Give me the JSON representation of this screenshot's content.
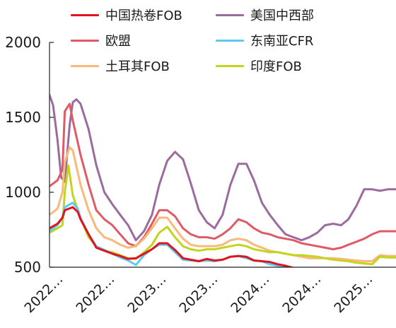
{
  "chart_data": {
    "type": "line",
    "title": "",
    "xlabel": "",
    "ylabel": "",
    "ylim": [
      500,
      2000
    ],
    "yticks": [
      500,
      1000,
      1500,
      2000
    ],
    "xtick_labels": [
      "2022…",
      "2022…",
      "2023…",
      "2023…",
      "2024…",
      "2024…",
      "2025…"
    ],
    "x_range": [
      "2022-01",
      "2025-09"
    ],
    "legend_position": "top",
    "series": [
      {
        "name": "中国热卷FOB",
        "color": "#e0141e",
        "points": [
          [
            "2022-01",
            760
          ],
          [
            "2022-02",
            790
          ],
          [
            "2022-02-20",
            830
          ],
          [
            "2022-03",
            880
          ],
          [
            "2022-04",
            900
          ],
          [
            "2022-04-20",
            870
          ],
          [
            "2022-05",
            820
          ],
          [
            "2022-06",
            720
          ],
          [
            "2022-07",
            630
          ],
          [
            "2022-08",
            610
          ],
          [
            "2022-09",
            590
          ],
          [
            "2022-10",
            575
          ],
          [
            "2022-11",
            555
          ],
          [
            "2022-12",
            560
          ],
          [
            "2023-01",
            590
          ],
          [
            "2023-02",
            620
          ],
          [
            "2023-03",
            660
          ],
          [
            "2023-04",
            660
          ],
          [
            "2023-05",
            615
          ],
          [
            "2023-06",
            560
          ],
          [
            "2023-07",
            550
          ],
          [
            "2023-08",
            540
          ],
          [
            "2023-09",
            555
          ],
          [
            "2023-10",
            545
          ],
          [
            "2023-11",
            550
          ],
          [
            "2023-12",
            570
          ],
          [
            "2024-01",
            575
          ],
          [
            "2024-02",
            570
          ],
          [
            "2024-03",
            545
          ],
          [
            "2024-04",
            540
          ],
          [
            "2024-05",
            535
          ],
          [
            "2024-06",
            520
          ],
          [
            "2024-07",
            510
          ],
          [
            "2024-08",
            495
          ],
          [
            "2024-09",
            480
          ],
          [
            "2024-10",
            490
          ],
          [
            "2024-11",
            480
          ],
          [
            "2024-12",
            470
          ],
          [
            "2025-01",
            470
          ],
          [
            "2025-02",
            460
          ],
          [
            "2025-03",
            460
          ],
          [
            "2025-04",
            450
          ],
          [
            "2025-05",
            445
          ],
          [
            "2025-06",
            445
          ],
          [
            "2025-07",
            440
          ],
          [
            "2025-08",
            440
          ],
          [
            "2025-09",
            440
          ]
        ]
      },
      {
        "name": "美国中西部",
        "color": "#9b6b9e",
        "points": [
          [
            "2022-01",
            1650
          ],
          [
            "2022-01-15",
            1580
          ],
          [
            "2022-02",
            1350
          ],
          [
            "2022-02-15",
            1100
          ],
          [
            "2022-03",
            1070
          ],
          [
            "2022-03-20",
            1450
          ],
          [
            "2022-04",
            1600
          ],
          [
            "2022-04-15",
            1620
          ],
          [
            "2022-05",
            1590
          ],
          [
            "2022-06",
            1420
          ],
          [
            "2022-07",
            1180
          ],
          [
            "2022-08",
            1000
          ],
          [
            "2022-09",
            920
          ],
          [
            "2022-10",
            850
          ],
          [
            "2022-11",
            780
          ],
          [
            "2022-12",
            680
          ],
          [
            "2023-01",
            740
          ],
          [
            "2023-02",
            850
          ],
          [
            "2023-03",
            1050
          ],
          [
            "2023-04",
            1210
          ],
          [
            "2023-05",
            1270
          ],
          [
            "2023-06",
            1220
          ],
          [
            "2023-07",
            1060
          ],
          [
            "2023-08",
            880
          ],
          [
            "2023-09",
            800
          ],
          [
            "2023-10",
            760
          ],
          [
            "2023-11",
            850
          ],
          [
            "2023-12",
            1050
          ],
          [
            "2024-01",
            1190
          ],
          [
            "2024-02",
            1190
          ],
          [
            "2024-03",
            1080
          ],
          [
            "2024-04",
            930
          ],
          [
            "2024-05",
            850
          ],
          [
            "2024-06",
            780
          ],
          [
            "2024-07",
            720
          ],
          [
            "2024-08",
            700
          ],
          [
            "2024-09",
            680
          ],
          [
            "2024-10",
            700
          ],
          [
            "2024-11",
            730
          ],
          [
            "2024-12",
            780
          ],
          [
            "2025-01",
            790
          ],
          [
            "2025-02",
            780
          ],
          [
            "2025-03",
            820
          ],
          [
            "2025-04",
            910
          ],
          [
            "2025-05",
            1020
          ],
          [
            "2025-06",
            1020
          ],
          [
            "2025-07",
            1010
          ],
          [
            "2025-08",
            1020
          ],
          [
            "2025-09",
            1020
          ]
        ]
      },
      {
        "name": "欧盟",
        "color": "#e05a66",
        "points": [
          [
            "2022-01",
            1040
          ],
          [
            "2022-02",
            1080
          ],
          [
            "2022-02-20",
            1150
          ],
          [
            "2022-03",
            1540
          ],
          [
            "2022-03-20",
            1590
          ],
          [
            "2022-04",
            1480
          ],
          [
            "2022-05",
            1250
          ],
          [
            "2022-06",
            1050
          ],
          [
            "2022-07",
            880
          ],
          [
            "2022-08",
            820
          ],
          [
            "2022-09",
            780
          ],
          [
            "2022-10",
            720
          ],
          [
            "2022-11",
            660
          ],
          [
            "2022-12",
            640
          ],
          [
            "2023-01",
            700
          ],
          [
            "2023-02",
            790
          ],
          [
            "2023-03",
            880
          ],
          [
            "2023-04",
            880
          ],
          [
            "2023-05",
            840
          ],
          [
            "2023-06",
            760
          ],
          [
            "2023-07",
            720
          ],
          [
            "2023-08",
            700
          ],
          [
            "2023-09",
            700
          ],
          [
            "2023-10",
            690
          ],
          [
            "2023-11",
            720
          ],
          [
            "2023-12",
            760
          ],
          [
            "2024-01",
            820
          ],
          [
            "2024-02",
            800
          ],
          [
            "2024-03",
            760
          ],
          [
            "2024-04",
            730
          ],
          [
            "2024-05",
            720
          ],
          [
            "2024-06",
            700
          ],
          [
            "2024-07",
            690
          ],
          [
            "2024-08",
            680
          ],
          [
            "2024-09",
            660
          ],
          [
            "2024-10",
            650
          ],
          [
            "2024-11",
            640
          ],
          [
            "2024-12",
            630
          ],
          [
            "2025-01",
            620
          ],
          [
            "2025-02",
            630
          ],
          [
            "2025-03",
            650
          ],
          [
            "2025-04",
            670
          ],
          [
            "2025-05",
            690
          ],
          [
            "2025-06",
            720
          ],
          [
            "2025-07",
            740
          ],
          [
            "2025-08",
            740
          ],
          [
            "2025-09",
            740
          ]
        ]
      },
      {
        "name": "东南亚CFR",
        "color": "#5ccbf0",
        "points": [
          [
            "2022-01",
            740
          ],
          [
            "2022-02",
            780
          ],
          [
            "2022-02-20",
            830
          ],
          [
            "2022-03",
            900
          ],
          [
            "2022-04",
            930
          ],
          [
            "2022-04-20",
            890
          ],
          [
            "2022-05",
            830
          ],
          [
            "2022-06",
            720
          ],
          [
            "2022-07",
            640
          ],
          [
            "2022-08",
            615
          ],
          [
            "2022-09",
            590
          ],
          [
            "2022-10",
            565
          ],
          [
            "2022-11",
            545
          ],
          [
            "2022-12",
            515
          ],
          [
            "2023-01",
            580
          ],
          [
            "2023-02",
            620
          ],
          [
            "2023-03",
            650
          ],
          [
            "2023-04",
            650
          ],
          [
            "2023-05",
            600
          ],
          [
            "2023-06",
            550
          ],
          [
            "2023-07",
            545
          ],
          [
            "2023-08",
            540
          ],
          [
            "2023-09",
            545
          ],
          [
            "2023-10",
            540
          ],
          [
            "2023-11",
            550
          ],
          [
            "2023-12",
            570
          ],
          [
            "2024-01",
            575
          ],
          [
            "2024-02",
            560
          ],
          [
            "2024-03",
            545
          ],
          [
            "2024-04",
            540
          ],
          [
            "2024-05",
            520
          ],
          [
            "2024-06",
            510
          ],
          [
            "2024-07",
            500
          ],
          [
            "2024-08",
            490
          ],
          [
            "2024-09",
            480
          ],
          [
            "2024-10",
            480
          ],
          [
            "2024-11",
            470
          ],
          [
            "2024-12",
            460
          ],
          [
            "2025-01",
            460
          ],
          [
            "2025-02",
            455
          ],
          [
            "2025-03",
            450
          ],
          [
            "2025-04",
            445
          ],
          [
            "2025-05",
            440
          ],
          [
            "2025-06",
            440
          ],
          [
            "2025-07",
            440
          ],
          [
            "2025-08",
            440
          ],
          [
            "2025-09",
            440
          ]
        ]
      },
      {
        "name": "土耳其FOB",
        "color": "#f8b97a",
        "points": [
          [
            "2022-01",
            850
          ],
          [
            "2022-02",
            890
          ],
          [
            "2022-02-20",
            1000
          ],
          [
            "2022-03",
            1200
          ],
          [
            "2022-03-20",
            1300
          ],
          [
            "2022-04",
            1280
          ],
          [
            "2022-05",
            1050
          ],
          [
            "2022-06",
            880
          ],
          [
            "2022-07",
            760
          ],
          [
            "2022-08",
            700
          ],
          [
            "2022-09",
            680
          ],
          [
            "2022-10",
            650
          ],
          [
            "2022-11",
            630
          ],
          [
            "2022-12",
            640
          ],
          [
            "2023-01",
            690
          ],
          [
            "2023-02",
            760
          ],
          [
            "2023-03",
            830
          ],
          [
            "2023-04",
            830
          ],
          [
            "2023-05",
            760
          ],
          [
            "2023-06",
            690
          ],
          [
            "2023-07",
            650
          ],
          [
            "2023-08",
            640
          ],
          [
            "2023-09",
            640
          ],
          [
            "2023-10",
            640
          ],
          [
            "2023-11",
            650
          ],
          [
            "2023-12",
            680
          ],
          [
            "2024-01",
            690
          ],
          [
            "2024-02",
            680
          ],
          [
            "2024-03",
            650
          ],
          [
            "2024-04",
            630
          ],
          [
            "2024-05",
            610
          ],
          [
            "2024-06",
            600
          ],
          [
            "2024-07",
            590
          ],
          [
            "2024-08",
            580
          ],
          [
            "2024-09",
            570
          ],
          [
            "2024-10",
            560
          ],
          [
            "2024-11",
            560
          ],
          [
            "2024-12",
            560
          ],
          [
            "2025-01",
            560
          ],
          [
            "2025-02",
            555
          ],
          [
            "2025-03",
            550
          ],
          [
            "2025-04",
            545
          ],
          [
            "2025-05",
            540
          ],
          [
            "2025-06",
            540
          ],
          [
            "2025-07",
            580
          ],
          [
            "2025-08",
            575
          ],
          [
            "2025-09",
            575
          ]
        ]
      },
      {
        "name": "印度FOB",
        "color": "#c3d41d",
        "points": [
          [
            "2022-01",
            730
          ],
          [
            "2022-02",
            760
          ],
          [
            "2022-02-20",
            780
          ],
          [
            "2022-03",
            1000
          ],
          [
            "2022-03-15",
            1180
          ],
          [
            "2022-04",
            980
          ],
          [
            "2022-05",
            830
          ],
          [
            "2022-06",
            700
          ],
          [
            "2022-07",
            640
          ],
          [
            "2022-08",
            610
          ],
          [
            "2022-09",
            600
          ],
          [
            "2022-10",
            580
          ],
          [
            "2022-11",
            560
          ],
          [
            "2022-12",
            555
          ],
          [
            "2023-01",
            600
          ],
          [
            "2023-02",
            650
          ],
          [
            "2023-03",
            730
          ],
          [
            "2023-04",
            770
          ],
          [
            "2023-05",
            700
          ],
          [
            "2023-06",
            640
          ],
          [
            "2023-07",
            620
          ],
          [
            "2023-08",
            610
          ],
          [
            "2023-09",
            620
          ],
          [
            "2023-10",
            620
          ],
          [
            "2023-11",
            630
          ],
          [
            "2023-12",
            640
          ],
          [
            "2024-01",
            650
          ],
          [
            "2024-02",
            640
          ],
          [
            "2024-03",
            620
          ],
          [
            "2024-04",
            610
          ],
          [
            "2024-05",
            600
          ],
          [
            "2024-06",
            600
          ],
          [
            "2024-07",
            590
          ],
          [
            "2024-08",
            580
          ],
          [
            "2024-09",
            580
          ],
          [
            "2024-10",
            575
          ],
          [
            "2024-11",
            570
          ],
          [
            "2024-12",
            560
          ],
          [
            "2025-01",
            550
          ],
          [
            "2025-02",
            545
          ],
          [
            "2025-03",
            540
          ],
          [
            "2025-04",
            530
          ],
          [
            "2025-05",
            525
          ],
          [
            "2025-06",
            520
          ],
          [
            "2025-07",
            570
          ],
          [
            "2025-08",
            565
          ],
          [
            "2025-09",
            565
          ]
        ]
      }
    ]
  }
}
